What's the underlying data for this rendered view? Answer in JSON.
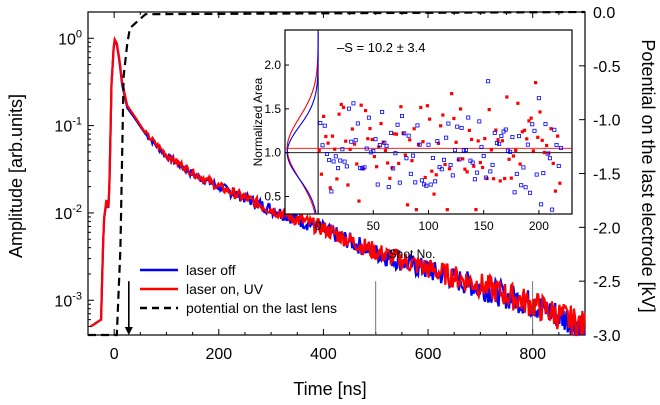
{
  "chart_data": [
    {
      "type": "line",
      "xlabel": "Time [ns]",
      "ylabel": "Amplitude [arb.units]",
      "ylabel_right": "Potential on the last electrode [kV]",
      "xlim": [
        -50,
        900
      ],
      "ylim": [
        0.0004,
        2
      ],
      "yscale": "log",
      "ylim_right": [
        -3.0,
        0.0
      ],
      "x_ticks": [
        0,
        200,
        400,
        600,
        800
      ],
      "y_ticks": [
        {
          "value": 0.001,
          "base": "10",
          "exp": "-3"
        },
        {
          "value": 0.01,
          "base": "10",
          "exp": "-2"
        },
        {
          "value": 0.1,
          "base": "10",
          "exp": "-1"
        },
        {
          "value": 1,
          "base": "10",
          "exp": "0"
        }
      ],
      "y_ticks_right": [
        "0.0",
        "-0.5",
        "-1.0",
        "-1.5",
        "-2.0",
        "-2.5",
        "-3.0"
      ],
      "legend": {
        "placement": "bottom-left"
      },
      "series": [
        {
          "name": "laser off",
          "color": "#0000ff",
          "x": [
            -45,
            -25,
            -20,
            -15,
            -10,
            -5,
            0,
            5,
            10,
            15,
            25,
            40,
            60,
            100,
            150,
            200,
            300,
            400,
            500,
            600,
            700,
            800,
            900
          ],
          "y": [
            0.0005,
            0.0006,
            0.008,
            0.013,
            0.011,
            0.3,
            0.95,
            0.85,
            0.55,
            0.3,
            0.16,
            0.12,
            0.08,
            0.045,
            0.028,
            0.02,
            0.011,
            0.0065,
            0.0035,
            0.0022,
            0.0014,
            0.0009,
            0.0005
          ]
        },
        {
          "name": "laser on, UV",
          "color": "#ff0000",
          "x": [
            -45,
            -25,
            -20,
            -15,
            -10,
            -5,
            0,
            5,
            10,
            15,
            25,
            40,
            60,
            100,
            150,
            200,
            300,
            400,
            500,
            600,
            700,
            800,
            900
          ],
          "y": [
            0.0005,
            0.0006,
            0.008,
            0.014,
            0.011,
            0.3,
            1.0,
            0.88,
            0.58,
            0.32,
            0.17,
            0.125,
            0.082,
            0.046,
            0.029,
            0.02,
            0.011,
            0.0066,
            0.0036,
            0.0023,
            0.0015,
            0.0009,
            0.0005
          ]
        },
        {
          "name": "potential on the last lens",
          "color": "#000000",
          "axis": "right",
          "x": [
            -50,
            5,
            12,
            18,
            25,
            30,
            60,
            900
          ],
          "y": [
            -3.0,
            -3.0,
            -2.2,
            -0.6,
            -0.3,
            -0.15,
            -0.02,
            0.0
          ]
        }
      ],
      "annotations": [
        {
          "type": "arrow",
          "x": 28,
          "from": -2.5,
          "to": -3.0
        },
        {
          "type": "vline",
          "x": 500
        },
        {
          "type": "vline",
          "x": 800
        }
      ]
    },
    {
      "type": "scatter",
      "xlabel": "Shot No.",
      "ylabel": "Normalized Area",
      "xlim": [
        -30,
        230
      ],
      "ylim": [
        0.3,
        2.4
      ],
      "x_ticks": [
        "0",
        "50",
        "100",
        "150",
        "200"
      ],
      "y_ticks": [
        "0.5",
        "1.0",
        "1.5",
        "2.0"
      ],
      "annotation": "–S = 10.2 ± 3.4",
      "series": [
        {
          "name": "laser on",
          "color": "#ff0000",
          "marker": "filled-square",
          "mean": 1.05,
          "std": 0.35
        },
        {
          "name": "laser off",
          "color": "#0000ff",
          "marker": "open-square",
          "mean": 1.0,
          "std": 0.3
        }
      ],
      "hlines": [
        {
          "y": 1.05,
          "color": "#ff0000"
        },
        {
          "y": 1.0,
          "color": "#000000"
        }
      ]
    }
  ]
}
